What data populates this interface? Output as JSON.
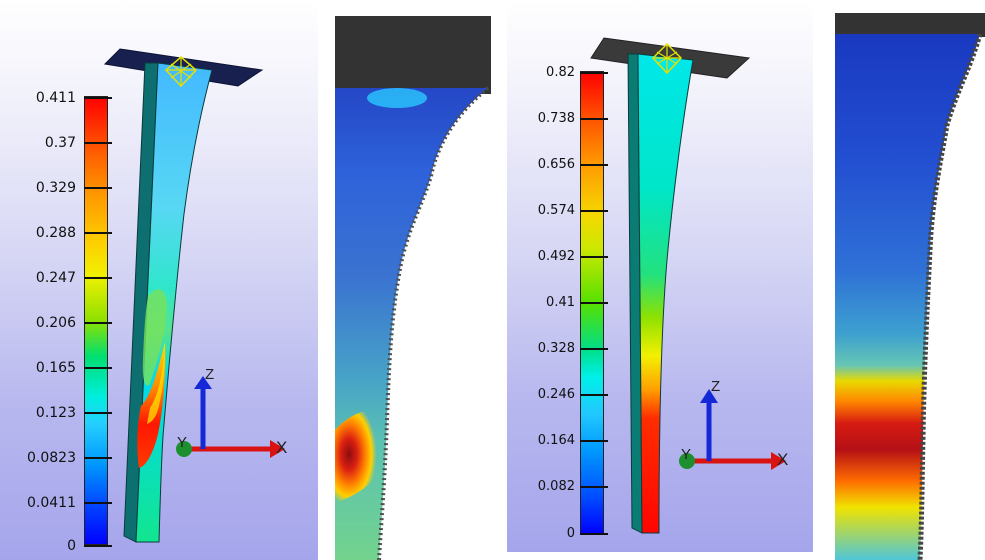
{
  "left_scale": {
    "labels": [
      "0.411",
      "0.37",
      "0.329",
      "0.288",
      "0.247",
      "0.206",
      "0.165",
      "0.123",
      "0.0823",
      "0.0411",
      "0"
    ],
    "values": [
      0.411,
      0.37,
      0.329,
      0.288,
      0.247,
      0.206,
      0.165,
      0.123,
      0.0823,
      0.0411,
      0
    ]
  },
  "right_scale": {
    "labels": [
      "0.82",
      "0.738",
      "0.656",
      "0.574",
      "0.492",
      "0.41",
      "0.328",
      "0.246",
      "0.164",
      "0.082",
      "0"
    ],
    "values": [
      0.82,
      0.738,
      0.656,
      0.574,
      0.492,
      0.41,
      0.328,
      0.246,
      0.164,
      0.082,
      0
    ]
  },
  "axes": {
    "x_label": "X",
    "y_label": "Y",
    "z_label": "Z"
  },
  "colors": {
    "x_axis": "#d91212",
    "y_axis": "#1d8f2f",
    "z_axis": "#1428d8",
    "support": "#17204e",
    "sim_edge": "#0a3b3c",
    "photo_dark": "#333333"
  }
}
